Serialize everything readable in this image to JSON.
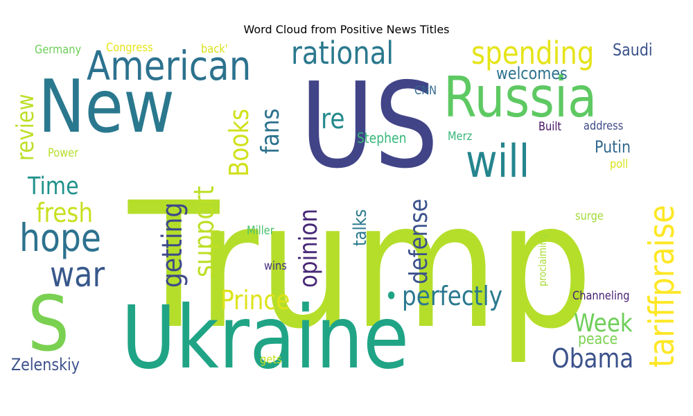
{
  "title": "Word Cloud from Positive News Titles",
  "words": [
    {
      "text": "Trump",
      "color": "#b5de2b"
    },
    {
      "text": "US",
      "color": "#414487"
    },
    {
      "text": "Ukraine",
      "color": "#20a486"
    },
    {
      "text": "New",
      "color": "#2a788e"
    },
    {
      "text": "Russia",
      "color": "#5ec962"
    },
    {
      "text": "S",
      "color": "#7ad151"
    },
    {
      "text": "American",
      "color": "#2c728e"
    },
    {
      "text": "will",
      "color": "#25858e"
    },
    {
      "text": "rational",
      "color": "#2a788e"
    },
    {
      "text": "spending",
      "color": "#e5e419"
    },
    {
      "text": "hope",
      "color": "#2c728e"
    },
    {
      "text": "war",
      "color": "#38588c"
    },
    {
      "text": "tariffpraise",
      "color": "#fde725"
    },
    {
      "text": "Ukraine-dot",
      "color": "#20a486"
    },
    {
      "text": "perfectly",
      "color": "#2a788e"
    },
    {
      "text": "Obama",
      "color": "#3b528b"
    },
    {
      "text": "Prince",
      "color": "#dde318"
    },
    {
      "text": "Week",
      "color": "#6ece58"
    },
    {
      "text": "fresh",
      "color": "#c8e020"
    },
    {
      "text": "Time",
      "color": "#21918c"
    },
    {
      "text": "review",
      "color": "#bddf26"
    },
    {
      "text": "Books",
      "color": "#d0e11c"
    },
    {
      "text": "support",
      "color": "#bddf26"
    },
    {
      "text": "getting",
      "color": "#3e4a89"
    },
    {
      "text": "opinion",
      "color": "#482878"
    },
    {
      "text": "defense",
      "color": "#3b528b"
    },
    {
      "text": "fans",
      "color": "#2c728e"
    },
    {
      "text": "re",
      "color": "#238a8d"
    },
    {
      "text": "talks",
      "color": "#2a788e"
    },
    {
      "text": "Saudi",
      "color": "#3b528b"
    },
    {
      "text": "welcomes",
      "color": "#2c728e"
    },
    {
      "text": "Putin",
      "color": "#31688e"
    },
    {
      "text": "Zelenskiy",
      "color": "#3b528b"
    },
    {
      "text": "peace",
      "color": "#7ad151"
    },
    {
      "text": "Stephen",
      "color": "#35b779"
    },
    {
      "text": "CNN",
      "color": "#31688e"
    },
    {
      "text": "Merz",
      "color": "#35b779"
    },
    {
      "text": "Built",
      "color": "#471365"
    },
    {
      "text": "address",
      "color": "#3e4a89"
    },
    {
      "text": "poll",
      "color": "#d8e219"
    },
    {
      "text": "surge",
      "color": "#a0da39"
    },
    {
      "text": "proclaiming",
      "color": "#a8db34"
    },
    {
      "text": "Channeling",
      "color": "#482173"
    },
    {
      "text": "Miller",
      "color": "#4ac16d"
    },
    {
      "text": "wins",
      "color": "#46327e"
    },
    {
      "text": "gets",
      "color": "#c8e020"
    },
    {
      "text": "Power",
      "color": "#b5de2b"
    },
    {
      "text": "Germany",
      "color": "#6ece58"
    },
    {
      "text": "Congress",
      "color": "#e5e419"
    },
    {
      "text": "back'",
      "color": "#d8e219"
    }
  ]
}
